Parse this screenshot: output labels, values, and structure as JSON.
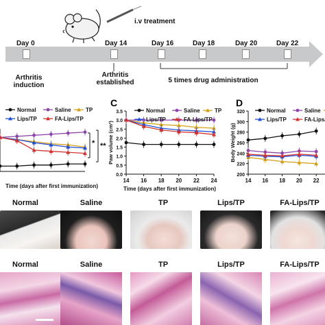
{
  "schematic": {
    "treatment_label": "i.v treatment",
    "days": [
      "Day 0",
      "Day 14",
      "Day 16",
      "Day 18",
      "Day 20",
      "Day 22"
    ],
    "events": {
      "induction": "Arthritis\ninduction",
      "established": "Arthritis\nestablished",
      "administration": "5 times drug administration"
    }
  },
  "panels": {
    "c_letter": "C",
    "d_letter": "D"
  },
  "legend": {
    "normal": "Normal",
    "saline": "Saline",
    "tp": "TP",
    "lips_tp": "Lips/TP",
    "fa_lips_tp": "FA-Lips/TP",
    "fa_lips_tp_truncated": "FA-Lips/T"
  },
  "colors": {
    "normal": "#111111",
    "saline": "#8e44ad",
    "tp": "#d4a017",
    "lips_tp": "#1f4fd8",
    "fa_lips_tp": "#d2322d"
  },
  "significance": [
    "*",
    "**"
  ],
  "chart_data": [
    {
      "type": "line",
      "panel": "B",
      "xlabel": "Time (days after first immunization)",
      "x": [
        14,
        16,
        18,
        20,
        22,
        24
      ],
      "series": [
        {
          "name": "Normal",
          "values": [
            0.5,
            0.5,
            0.6,
            0.6,
            0.7,
            0.7
          ]
        },
        {
          "name": "Saline",
          "values": [
            3.2,
            3.3,
            3.4,
            3.5,
            3.6,
            3.7
          ]
        },
        {
          "name": "TP",
          "values": [
            3.2,
            3.0,
            2.8,
            2.6,
            2.5,
            2.3
          ]
        },
        {
          "name": "Lips/TP",
          "values": [
            3.2,
            3.0,
            2.7,
            2.5,
            2.3,
            2.2
          ]
        },
        {
          "name": "FA-Lips/TP",
          "values": [
            3.2,
            2.9,
            2.0,
            1.9,
            1.8,
            1.7
          ]
        }
      ]
    },
    {
      "type": "line",
      "panel": "C",
      "ylabel": "Paw volume (cm³)",
      "xlabel": "Time (days after first immunization)",
      "x": [
        14,
        16,
        18,
        20,
        22,
        24
      ],
      "xticks": [
        "14",
        "16",
        "18",
        "20",
        "22",
        "24"
      ],
      "yticks": [
        "0.0",
        "0.5",
        "1.0",
        "1.5",
        "2.0",
        "2.5",
        "3.0",
        "3.5"
      ],
      "ylim": [
        0,
        3.5
      ],
      "series": [
        {
          "name": "Normal",
          "values": [
            1.75,
            1.65,
            1.65,
            1.65,
            1.65,
            1.65
          ]
        },
        {
          "name": "Saline",
          "values": [
            3.0,
            3.0,
            3.0,
            3.0,
            3.0,
            3.0
          ]
        },
        {
          "name": "TP",
          "values": [
            3.0,
            2.85,
            2.75,
            2.7,
            2.6,
            2.55
          ]
        },
        {
          "name": "Lips/TP",
          "values": [
            3.0,
            2.75,
            2.55,
            2.45,
            2.4,
            2.35
          ]
        },
        {
          "name": "FA-Lips/TP",
          "values": [
            3.0,
            2.65,
            2.45,
            2.35,
            2.3,
            2.2
          ]
        }
      ]
    },
    {
      "type": "line",
      "panel": "D",
      "ylabel": "Body Weight (g)",
      "x": [
        14,
        16,
        18,
        20,
        22
      ],
      "xticks": [
        "14",
        "16",
        "18",
        "20",
        "22"
      ],
      "yticks": [
        "200",
        "220",
        "240",
        "260",
        "280",
        "300",
        "320"
      ],
      "ylim": [
        200,
        320
      ],
      "series": [
        {
          "name": "Normal",
          "values": [
            265,
            268,
            273,
            276,
            282
          ]
        },
        {
          "name": "Saline",
          "values": [
            245,
            242,
            240,
            244,
            243
          ]
        },
        {
          "name": "TP",
          "values": [
            232,
            228,
            224,
            222,
            220
          ]
        },
        {
          "name": "Lips/TP",
          "values": [
            236,
            234,
            233,
            236,
            234
          ]
        },
        {
          "name": "FA-Lips/TP",
          "values": [
            238,
            236,
            235,
            238,
            236
          ]
        }
      ]
    }
  ],
  "photos": [
    "Normal",
    "Saline",
    "TP",
    "Lips/TP",
    "FA-Lips/TP"
  ]
}
